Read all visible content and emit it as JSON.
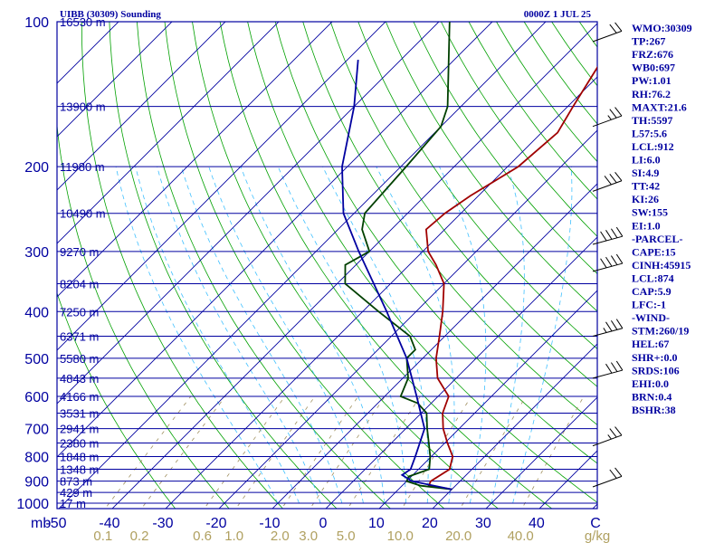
{
  "header": {
    "station": "UIBB (30309) Sounding",
    "datetime": "0000Z  1 JUL 25"
  },
  "indices": [
    "WMO:30309",
    "TP:267",
    "FRZ:676",
    "WB0:697",
    "PW:1.01",
    "RH:76.2",
    "MAXT:21.6",
    "TH:5597",
    "L57:5.6",
    "LCL:912",
    "LI:6.0",
    "SI:4.9",
    "TT:42",
    "KI:26",
    "SW:155",
    "EI:1.0",
    "-PARCEL-",
    "CAPE:15",
    "CINH:45915",
    "LCL:874",
    "CAP:5.9",
    "LFC:-1",
    "-WIND-",
    "STM:260/19",
    "HEL:67",
    "SHR+:0.0",
    "SRDS:106",
    "EHI:0.0",
    "BRN:0.4",
    "BSHR:38"
  ],
  "chart_data": {
    "type": "skew-t",
    "pressure_axis": {
      "unit_label": "mb",
      "ticks": [
        {
          "p": 100,
          "label": "100"
        },
        {
          "p": 200,
          "label": "200"
        },
        {
          "p": 300,
          "label": "300"
        },
        {
          "p": 400,
          "label": "400"
        },
        {
          "p": 500,
          "label": "500"
        },
        {
          "p": 600,
          "label": "600"
        },
        {
          "p": 700,
          "label": "700"
        },
        {
          "p": 800,
          "label": "800"
        },
        {
          "p": 900,
          "label": "900"
        },
        {
          "p": 1000,
          "label": "1000"
        }
      ],
      "range": [
        100,
        1000
      ]
    },
    "temperature_axis": {
      "unit_label": "C",
      "ticks": [
        {
          "t": -50,
          "label": "-50"
        },
        {
          "t": -40,
          "label": "-40"
        },
        {
          "t": -30,
          "label": "-30"
        },
        {
          "t": -20,
          "label": "-20"
        },
        {
          "t": -10,
          "label": "-10"
        },
        {
          "t": 0,
          "label": "0"
        },
        {
          "t": 10,
          "label": "10"
        },
        {
          "t": 20,
          "label": "20"
        },
        {
          "t": 30,
          "label": "30"
        },
        {
          "t": 40,
          "label": "40"
        }
      ]
    },
    "mixing_ratio_axis": {
      "unit_label": "g/kg",
      "ticks": [
        {
          "w": 0.1,
          "label": "0.1"
        },
        {
          "w": 0.2,
          "label": "0.2"
        },
        {
          "w": 0.6,
          "label": "0.6"
        },
        {
          "w": 1.0,
          "label": "1.0"
        },
        {
          "w": 2.0,
          "label": "2.0"
        },
        {
          "w": 3.0,
          "label": "3.0"
        },
        {
          "w": 5.0,
          "label": "5.0"
        },
        {
          "w": 10.0,
          "label": "10.0"
        },
        {
          "w": 20.0,
          "label": "20.0"
        },
        {
          "w": 40.0,
          "label": "40.0"
        }
      ]
    },
    "altitude_labels": [
      {
        "p": 100,
        "label": "16530 m"
      },
      {
        "p": 150,
        "label": "13900 m"
      },
      {
        "p": 200,
        "label": "11980 m"
      },
      {
        "p": 250,
        "label": "10490 m"
      },
      {
        "p": 300,
        "label": "9270 m"
      },
      {
        "p": 350,
        "label": "8204 m"
      },
      {
        "p": 400,
        "label": "7250 m"
      },
      {
        "p": 450,
        "label": "6371 m"
      },
      {
        "p": 500,
        "label": "5580 m"
      },
      {
        "p": 550,
        "label": "4843 m"
      },
      {
        "p": 600,
        "label": "4166 m"
      },
      {
        "p": 650,
        "label": "3531 m"
      },
      {
        "p": 700,
        "label": "2941 m"
      },
      {
        "p": 750,
        "label": "2380 m"
      },
      {
        "p": 800,
        "label": "1848 m"
      },
      {
        "p": 850,
        "label": "1348 m"
      },
      {
        "p": 900,
        "label": "873 m"
      },
      {
        "p": 950,
        "label": "429 m"
      },
      {
        "p": 1000,
        "label": "17 m"
      }
    ],
    "series": [
      {
        "key": "temperature",
        "color": "#a00000",
        "points": [
          {
            "p": 936,
            "t": 20.0
          },
          {
            "p": 920,
            "t": 15.0
          },
          {
            "p": 900,
            "t": 14.5
          },
          {
            "p": 850,
            "t": 15.8
          },
          {
            "p": 800,
            "t": 14.0
          },
          {
            "p": 750,
            "t": 10.5
          },
          {
            "p": 700,
            "t": 7.0
          },
          {
            "p": 650,
            "t": 4.0
          },
          {
            "p": 600,
            "t": 2.0
          },
          {
            "p": 550,
            "t": -3.5
          },
          {
            "p": 500,
            "t": -7.5
          },
          {
            "p": 450,
            "t": -11.0
          },
          {
            "p": 400,
            "t": -15.0
          },
          {
            "p": 350,
            "t": -20.0
          },
          {
            "p": 320,
            "t": -25.0
          },
          {
            "p": 300,
            "t": -29.0
          },
          {
            "p": 270,
            "t": -33.5
          },
          {
            "p": 250,
            "t": -33.0
          },
          {
            "p": 230,
            "t": -31.5
          },
          {
            "p": 200,
            "t": -28.0
          },
          {
            "p": 170,
            "t": -27.0
          },
          {
            "p": 150,
            "t": -29.0
          },
          {
            "p": 100,
            "t": -35.0
          }
        ]
      },
      {
        "key": "dewpoint",
        "color": "#004000",
        "points": [
          {
            "p": 936,
            "t": 20.0
          },
          {
            "p": 920,
            "t": 13.5
          },
          {
            "p": 900,
            "t": 10.0
          },
          {
            "p": 880,
            "t": 9.5
          },
          {
            "p": 850,
            "t": 12.0
          },
          {
            "p": 800,
            "t": 9.8
          },
          {
            "p": 750,
            "t": 7.0
          },
          {
            "p": 700,
            "t": 4.0
          },
          {
            "p": 650,
            "t": 1.0
          },
          {
            "p": 620,
            "t": -2.5
          },
          {
            "p": 600,
            "t": -7.0
          },
          {
            "p": 550,
            "t": -9.0
          },
          {
            "p": 500,
            "t": -13.0
          },
          {
            "p": 480,
            "t": -13.0
          },
          {
            "p": 450,
            "t": -16.5
          },
          {
            "p": 400,
            "t": -27.0
          },
          {
            "p": 350,
            "t": -38.5
          },
          {
            "p": 320,
            "t": -42.0
          },
          {
            "p": 300,
            "t": -40.0
          },
          {
            "p": 270,
            "t": -45.5
          },
          {
            "p": 250,
            "t": -48.0
          },
          {
            "p": 200,
            "t": -49.0
          },
          {
            "p": 165,
            "t": -50.0
          },
          {
            "p": 150,
            "t": -52.5
          },
          {
            "p": 100,
            "t": -68.0
          }
        ]
      },
      {
        "key": "parcel",
        "color": "#0000a0",
        "points": [
          {
            "p": 936,
            "t": 20.0
          },
          {
            "p": 900,
            "t": 11.0
          },
          {
            "p": 874,
            "t": 8.0
          },
          {
            "p": 850,
            "t": 8.5
          },
          {
            "p": 800,
            "t": 7.0
          },
          {
            "p": 700,
            "t": 3.5
          },
          {
            "p": 600,
            "t": -4.0
          },
          {
            "p": 500,
            "t": -13.0
          },
          {
            "p": 400,
            "t": -25.5
          },
          {
            "p": 300,
            "t": -42.0
          },
          {
            "p": 250,
            "t": -52.0
          },
          {
            "p": 200,
            "t": -61.0
          },
          {
            "p": 150,
            "t": -70.0
          },
          {
            "p": 120,
            "t": -78.0
          }
        ]
      }
    ],
    "wind_barbs": [
      {
        "p": 925,
        "dir": 250,
        "speed": 20
      },
      {
        "p": 760,
        "dir": 250,
        "speed": 25
      },
      {
        "p": 550,
        "dir": 255,
        "speed": 30
      },
      {
        "p": 450,
        "dir": 255,
        "speed": 35
      },
      {
        "p": 330,
        "dir": 255,
        "speed": 40
      },
      {
        "p": 290,
        "dir": 255,
        "speed": 40
      },
      {
        "p": 225,
        "dir": 250,
        "speed": 30
      },
      {
        "p": 165,
        "dir": 250,
        "speed": 25
      },
      {
        "p": 110,
        "dir": 250,
        "speed": 20
      }
    ],
    "colors": {
      "isobar": "#0000a0",
      "isotherm": "#0000a0",
      "dry_adiabat": "#00a000",
      "moist_adiabat": "#40c0ff",
      "mixing_ratio": "#a09060",
      "barb": "#000000"
    },
    "grid": true
  }
}
